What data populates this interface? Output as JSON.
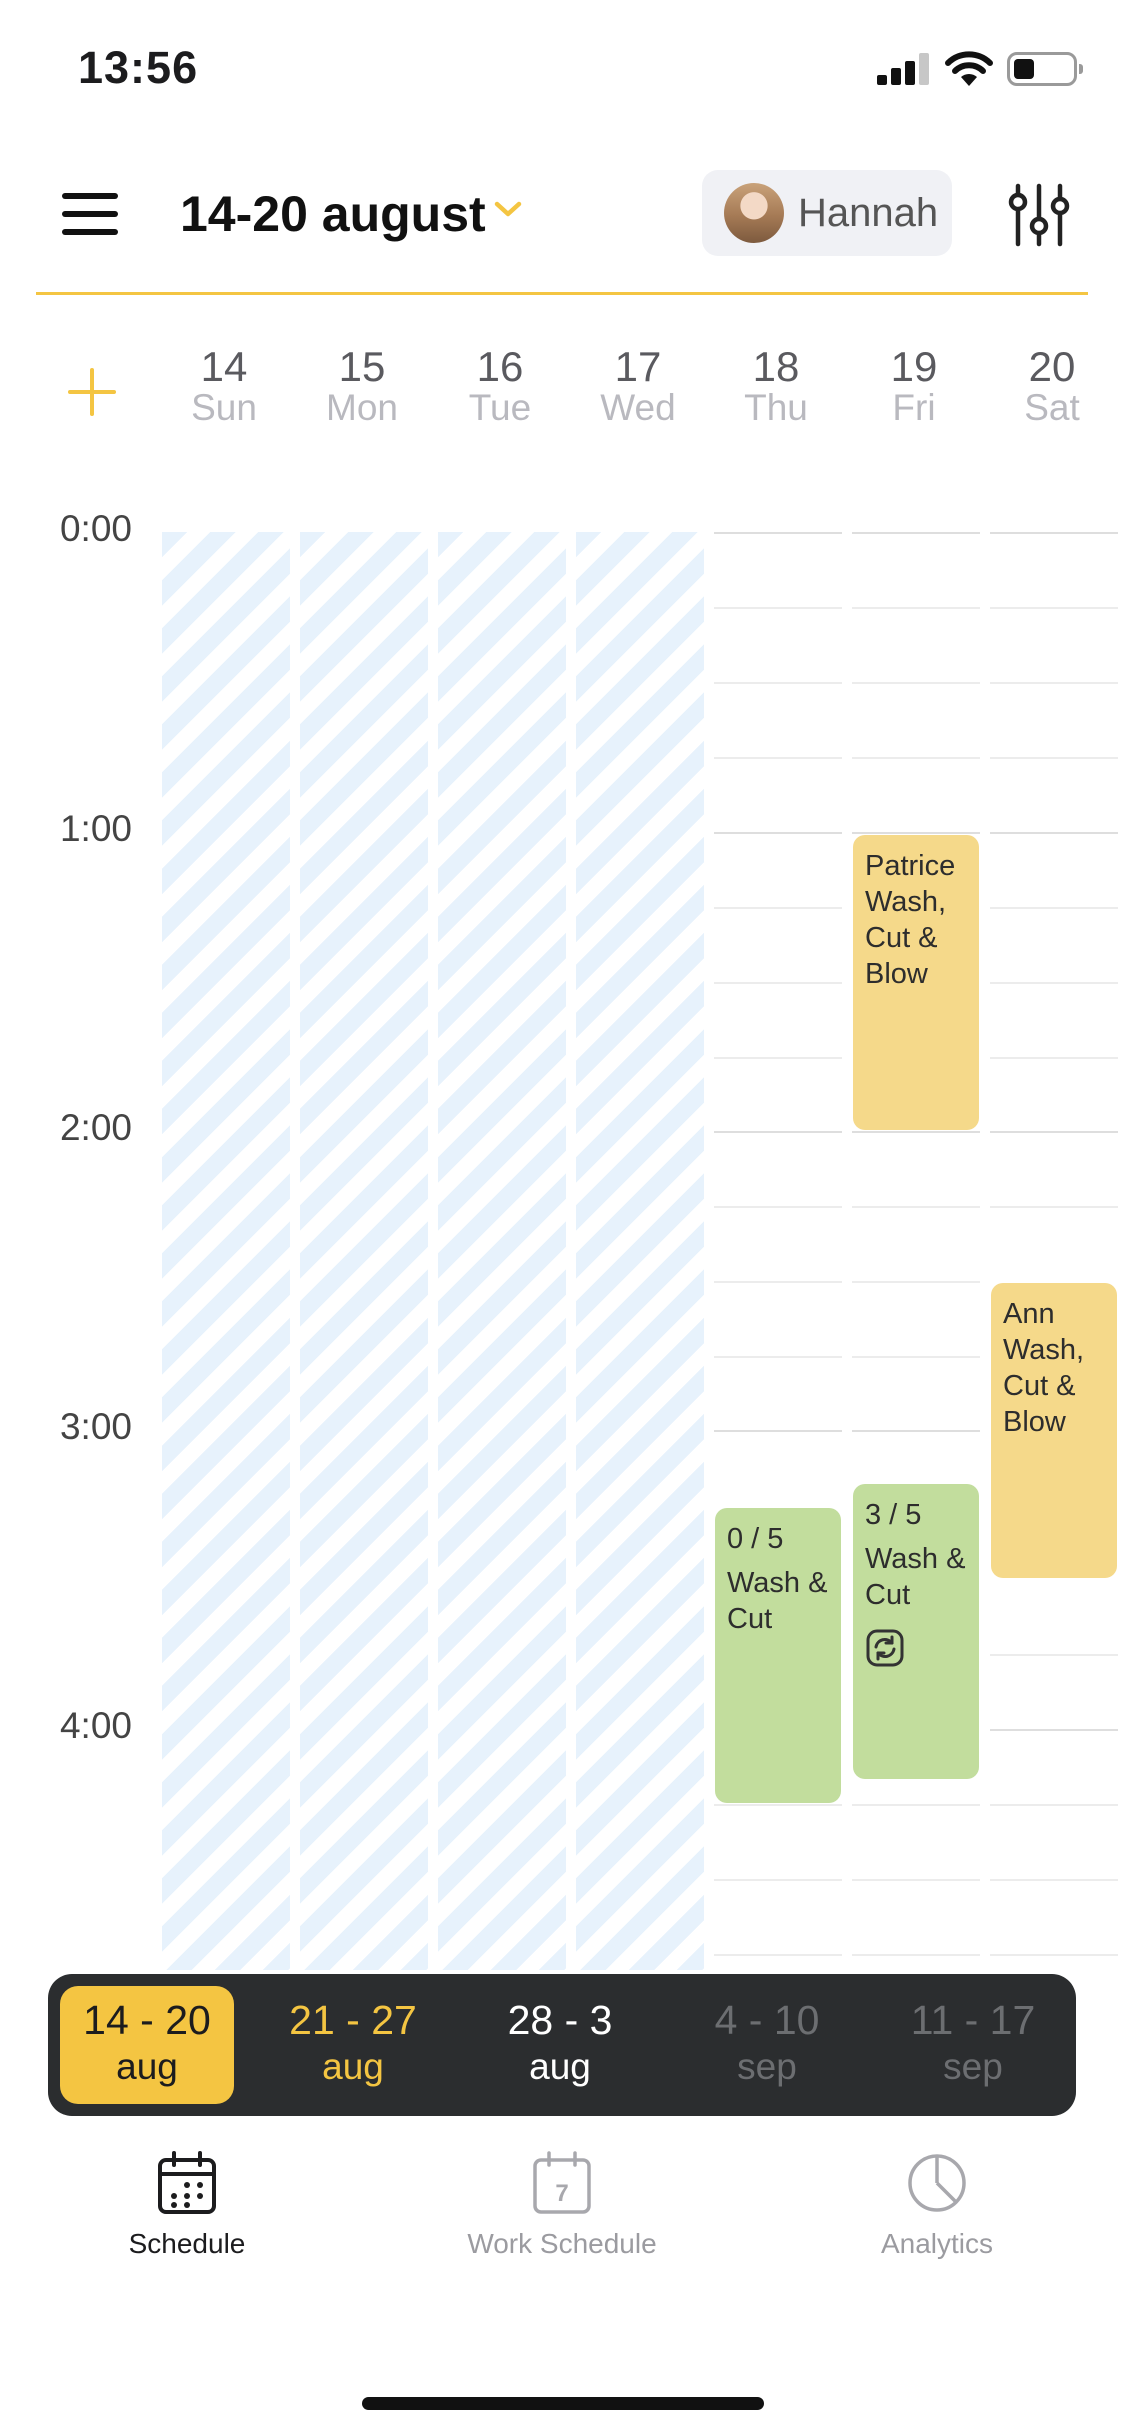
{
  "status_bar": {
    "time": "13:56"
  },
  "header": {
    "date_range": "14-20 august",
    "user_name": "Hannah"
  },
  "days": [
    {
      "num": "14",
      "weekday": "Sun"
    },
    {
      "num": "15",
      "weekday": "Mon"
    },
    {
      "num": "16",
      "weekday": "Tue"
    },
    {
      "num": "17",
      "weekday": "Wed"
    },
    {
      "num": "18",
      "weekday": "Thu"
    },
    {
      "num": "19",
      "weekday": "Fri"
    },
    {
      "num": "20",
      "weekday": "Sat"
    }
  ],
  "hours": [
    "0:00",
    "1:00",
    "2:00",
    "3:00",
    "4:00"
  ],
  "events": [
    {
      "client": "Patrice",
      "service": "Wash, Cut & Blow",
      "color": "#f5d98a"
    },
    {
      "client": "Ann",
      "service": "Wash, Cut & Blow",
      "color": "#f5d98a"
    },
    {
      "count": "0 / 5",
      "service": "Wash & Cut",
      "color": "#c2dd9d"
    },
    {
      "count": "3 / 5",
      "service": "Wash & Cut",
      "color": "#c2dd9d",
      "icon": "recurring-icon"
    }
  ],
  "weeks": [
    {
      "range": "14 - 20",
      "month": "aug",
      "state": "selected"
    },
    {
      "range": "21 - 27",
      "month": "aug",
      "state": "upcoming"
    },
    {
      "range": "28 - 3",
      "month": "aug",
      "state": "normal"
    },
    {
      "range": "4 - 10",
      "month": "sep",
      "state": "disabled"
    },
    {
      "range": "11 - 17",
      "month": "sep",
      "state": "disabled"
    }
  ],
  "tabs": [
    {
      "label": "Schedule",
      "icon": "calendar-icon",
      "active": true
    },
    {
      "label": "Work Schedule",
      "icon": "calendar-day-icon",
      "badge": "7",
      "active": false
    },
    {
      "label": "Analytics",
      "icon": "pie-chart-icon",
      "active": false
    }
  ],
  "colors": {
    "accent": "#f4c542",
    "past_day_stripe": "#e7f2fc",
    "dark_bar": "#2b2d2f"
  }
}
